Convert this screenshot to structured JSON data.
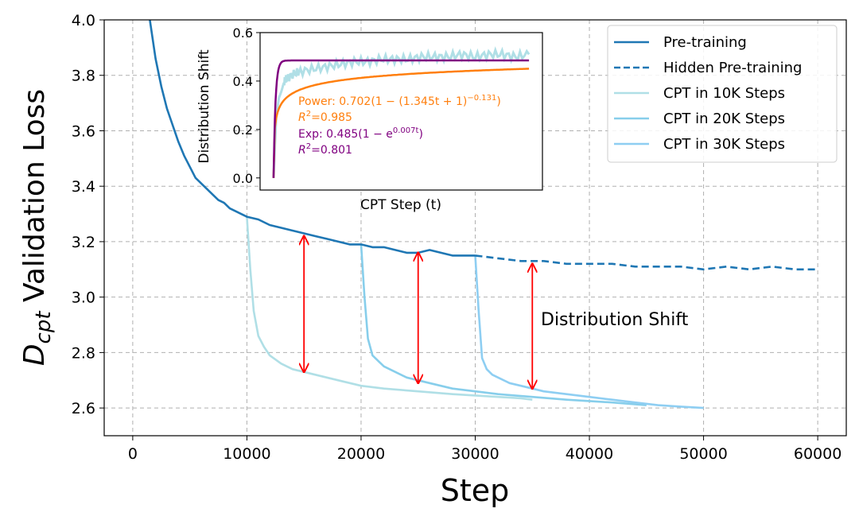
{
  "chart_data": [
    {
      "type": "line",
      "title": "",
      "xlabel": "Step",
      "ylabel_main": "D",
      "ylabel_sub": "cpt",
      "ylabel_rest": " Validation Loss",
      "xlim": [
        -2500,
        62500
      ],
      "ylim": [
        2.5,
        4.0
      ],
      "xticks": [
        0,
        10000,
        20000,
        30000,
        40000,
        50000,
        60000
      ],
      "yticks": [
        2.6,
        2.8,
        3.0,
        3.2,
        3.4,
        3.6,
        3.8,
        4.0
      ],
      "grid": true,
      "legend_position": "top-right",
      "series": [
        {
          "name": "Pre-training",
          "color": "#1f77b4",
          "style": "solid",
          "x": [
            1500,
            2000,
            2500,
            3000,
            3500,
            4000,
            4500,
            5000,
            5500,
            6000,
            6500,
            7000,
            7500,
            8000,
            8500,
            9000,
            9500,
            10000,
            11000,
            12000,
            13000,
            14000,
            15000,
            16000,
            17000,
            18000,
            19000,
            20000,
            21000,
            22000,
            23000,
            24000,
            25000,
            26000,
            27000,
            28000,
            29000,
            30000
          ],
          "y": [
            4.0,
            3.86,
            3.76,
            3.68,
            3.62,
            3.56,
            3.51,
            3.47,
            3.43,
            3.41,
            3.39,
            3.37,
            3.35,
            3.34,
            3.32,
            3.31,
            3.3,
            3.29,
            3.28,
            3.26,
            3.25,
            3.24,
            3.23,
            3.22,
            3.21,
            3.2,
            3.19,
            3.19,
            3.18,
            3.18,
            3.17,
            3.16,
            3.16,
            3.17,
            3.16,
            3.15,
            3.15,
            3.15
          ]
        },
        {
          "name": "Hidden Pre-training",
          "color": "#1f77b4",
          "style": "dashed",
          "x": [
            30000,
            32000,
            34000,
            36000,
            38000,
            40000,
            42000,
            44000,
            46000,
            48000,
            50000,
            52000,
            54000,
            56000,
            58000,
            60000
          ],
          "y": [
            3.15,
            3.14,
            3.13,
            3.13,
            3.12,
            3.12,
            3.12,
            3.11,
            3.11,
            3.11,
            3.1,
            3.11,
            3.1,
            3.11,
            3.1,
            3.1
          ]
        },
        {
          "name": "CPT in 10K Steps",
          "color": "#b0dfe6",
          "style": "solid",
          "x": [
            10000,
            10300,
            10600,
            11000,
            11500,
            12000,
            13000,
            14000,
            15000,
            16000,
            18000,
            20000,
            22000,
            25000,
            28000,
            30000,
            32000,
            34000,
            35000
          ],
          "y": [
            3.29,
            3.1,
            2.95,
            2.86,
            2.82,
            2.79,
            2.76,
            2.74,
            2.73,
            2.72,
            2.7,
            2.68,
            2.67,
            2.66,
            2.65,
            2.645,
            2.64,
            2.635,
            2.63
          ]
        },
        {
          "name": "CPT in 20K Steps",
          "color": "#87ceeb",
          "style": "solid",
          "x": [
            20000,
            20300,
            20600,
            21000,
            21500,
            22000,
            23000,
            24000,
            25000,
            26000,
            28000,
            30000,
            32000,
            35000,
            38000,
            40000,
            42000,
            45000
          ],
          "y": [
            3.19,
            3.0,
            2.85,
            2.79,
            2.77,
            2.75,
            2.73,
            2.71,
            2.7,
            2.69,
            2.67,
            2.66,
            2.65,
            2.64,
            2.63,
            2.625,
            2.62,
            2.61
          ]
        },
        {
          "name": "CPT in 30K Steps",
          "color": "#8ecef2",
          "style": "solid",
          "x": [
            30000,
            30300,
            30600,
            31000,
            31500,
            32000,
            33000,
            34000,
            35000,
            36000,
            38000,
            40000,
            42000,
            44000,
            46000,
            48000,
            50000
          ],
          "y": [
            3.15,
            2.95,
            2.78,
            2.74,
            2.72,
            2.71,
            2.69,
            2.68,
            2.67,
            2.66,
            2.65,
            2.64,
            2.63,
            2.62,
            2.61,
            2.605,
            2.6
          ]
        }
      ],
      "arrows": [
        {
          "x": 15000,
          "y_top": 3.22,
          "y_bottom": 2.73,
          "color": "#ff0000"
        },
        {
          "x": 25000,
          "y_top": 3.16,
          "y_bottom": 2.69,
          "color": "#ff0000"
        },
        {
          "x": 35000,
          "y_top": 3.12,
          "y_bottom": 2.67,
          "color": "#ff0000"
        }
      ],
      "annotations": [
        {
          "text": "Distribution Shift",
          "x": 36000,
          "y": 2.91
        }
      ]
    },
    {
      "type": "line",
      "title": "",
      "xlabel": "CPT Step (t)",
      "ylabel": "Distribution Shift",
      "ylim": [
        -0.05,
        0.6
      ],
      "xlim": [
        -100,
        2000
      ],
      "yticks": [
        0.0,
        0.2,
        0.4,
        0.6
      ],
      "grid": false,
      "series": [
        {
          "name": "Observed shift",
          "color": "#b0dfe6",
          "style": "noisy",
          "x": [
            0,
            20,
            40,
            60,
            80,
            100,
            150,
            200,
            300,
            400,
            500,
            600,
            700,
            800,
            900,
            1000,
            1100,
            1200,
            1300,
            1400,
            1500,
            1600,
            1700,
            1800,
            1900
          ],
          "y": [
            0.0,
            0.25,
            0.33,
            0.36,
            0.4,
            0.41,
            0.43,
            0.44,
            0.45,
            0.46,
            0.47,
            0.48,
            0.48,
            0.49,
            0.49,
            0.49,
            0.5,
            0.5,
            0.5,
            0.51,
            0.5,
            0.51,
            0.51,
            0.5,
            0.51
          ]
        }
      ],
      "fits": [
        {
          "label": "Power: 0.702(1 − (1.345t + 1)",
          "exponent": "−0.131",
          "label_end": ")",
          "r2": "=0.985",
          "color": "#ff7f0e",
          "a": 0.702,
          "b": 1.345,
          "c": 0.131
        },
        {
          "label": "Exp: 0.485(1 − e",
          "exponent": "0.007t",
          "label_end": ")",
          "r2": "=0.801",
          "color": "#800080",
          "a": 0.485,
          "k": 0.007
        }
      ]
    }
  ]
}
